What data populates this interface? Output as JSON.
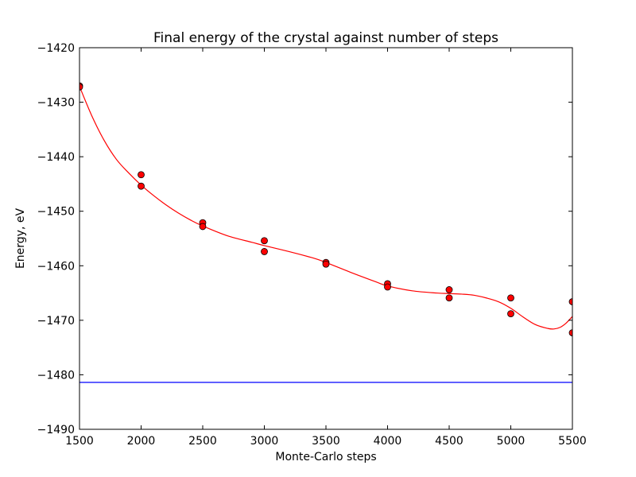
{
  "chart_data": {
    "type": "scatter",
    "title": "Final energy of the crystal against number of steps",
    "xlabel": "Monte-Carlo steps",
    "ylabel": "Energy, eV",
    "xlim": [
      1500,
      5500
    ],
    "ylim": [
      -1490,
      -1420
    ],
    "xticks": [
      1500,
      2000,
      2500,
      3000,
      3500,
      4000,
      4500,
      5000,
      5500
    ],
    "yticks": [
      -1420,
      -1430,
      -1440,
      -1450,
      -1460,
      -1470,
      -1480,
      -1490
    ],
    "grid": false,
    "series": [
      {
        "kind": "points",
        "color": "#ff0000",
        "x": [
          1500,
          1500,
          2000,
          2000,
          2500,
          2500,
          3000,
          3000,
          3500,
          3500,
          4000,
          4000,
          4500,
          4500,
          5000,
          5000,
          5500,
          5500
        ],
        "y": [
          -1427.0,
          -1427.2,
          -1443.3,
          -1445.4,
          -1452.1,
          -1452.8,
          -1455.4,
          -1457.4,
          -1459.4,
          -1459.7,
          -1463.3,
          -1463.9,
          -1464.4,
          -1465.9,
          -1465.9,
          -1468.8,
          -1466.6,
          -1472.3
        ]
      },
      {
        "kind": "fit-curve",
        "color": "#ff0000",
        "x": [
          1500,
          1600,
          1700,
          1800,
          1900,
          2000,
          2100,
          2200,
          2300,
          2400,
          2500,
          2700,
          2900,
          3000,
          3200,
          3400,
          3500,
          3700,
          3900,
          4000,
          4200,
          4400,
          4500,
          4600,
          4700,
          4800,
          4900,
          5000,
          5100,
          5200,
          5300,
          5350,
          5400,
          5450,
          5500
        ],
        "y": [
          -1427.1,
          -1432.5,
          -1437.0,
          -1440.5,
          -1443.0,
          -1445.2,
          -1447.1,
          -1448.8,
          -1450.3,
          -1451.6,
          -1452.7,
          -1454.5,
          -1455.7,
          -1456.3,
          -1457.4,
          -1458.6,
          -1459.4,
          -1461.2,
          -1462.9,
          -1463.7,
          -1464.6,
          -1465.0,
          -1465.1,
          -1465.2,
          -1465.4,
          -1465.9,
          -1466.6,
          -1467.8,
          -1469.4,
          -1470.8,
          -1471.5,
          -1471.6,
          -1471.3,
          -1470.5,
          -1469.3
        ]
      },
      {
        "kind": "reference-line",
        "color": "#0000ff",
        "y": -1481.4
      }
    ]
  }
}
